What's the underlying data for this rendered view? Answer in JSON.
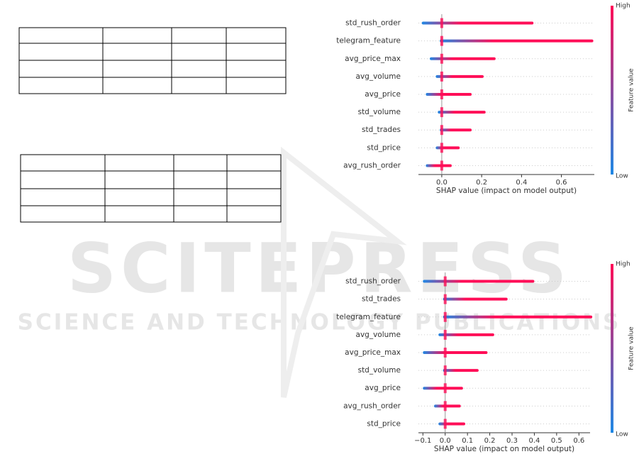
{
  "watermark": {
    "title": "SCITEPRESS",
    "subtitle": "SCIENCE AND TECHNOLOGY PUBLICATIONS"
  },
  "chart_data": [
    {
      "type": "beeswarm",
      "xlabel": "SHAP value (impact on model output)",
      "colorbar_label": "Feature value",
      "colorbar_high": "High",
      "colorbar_low": "Low",
      "colors": [
        "#1e88e5",
        "#ff0d57"
      ],
      "categories": [
        "std_rush_order",
        "telegram_feature",
        "avg_price_max",
        "avg_volume",
        "avg_price",
        "std_volume",
        "std_trades",
        "std_price",
        "avg_rush_order"
      ],
      "ranges": [
        [
          -0.1,
          0.46
        ],
        [
          -0.01,
          0.76
        ],
        [
          -0.06,
          0.27
        ],
        [
          -0.03,
          0.21
        ],
        [
          -0.08,
          0.15
        ],
        [
          -0.02,
          0.22
        ],
        [
          -0.01,
          0.15
        ],
        [
          -0.03,
          0.09
        ],
        [
          -0.08,
          0.05
        ]
      ],
      "xlim": [
        -0.117,
        0.765
      ],
      "xticks": [
        {
          "value": 0,
          "label": "0.0"
        },
        {
          "value": 0.2,
          "label": "0.2"
        },
        {
          "value": 0.4,
          "label": "0.4"
        },
        {
          "value": 0.6,
          "label": "0.6"
        }
      ]
    },
    {
      "type": "beeswarm",
      "xlabel": "SHAP value (impact on model output)",
      "colorbar_label": "Feature value",
      "colorbar_high": "High",
      "colorbar_low": "Low",
      "colors": [
        "#1e88e5",
        "#ff0d57"
      ],
      "categories": [
        "std_rush_order",
        "std_trades",
        "telegram_feature",
        "avg_volume",
        "avg_price_max",
        "std_volume",
        "avg_price",
        "avg_rush_order",
        "std_price"
      ],
      "ranges": [
        [
          -0.1,
          0.4
        ],
        [
          -0.01,
          0.28
        ],
        [
          -0.01,
          0.66
        ],
        [
          -0.03,
          0.22
        ],
        [
          -0.1,
          0.19
        ],
        [
          -0.01,
          0.15
        ],
        [
          -0.1,
          0.08
        ],
        [
          -0.05,
          0.07
        ],
        [
          -0.03,
          0.09
        ]
      ],
      "xlim": [
        -0.12,
        0.65
      ],
      "xticks": [
        {
          "value": -0.1,
          "label": "−0.1"
        },
        {
          "value": 0,
          "label": "0.0"
        },
        {
          "value": 0.1,
          "label": "0.1"
        },
        {
          "value": 0.2,
          "label": "0.2"
        },
        {
          "value": 0.3,
          "label": "0.3"
        },
        {
          "value": 0.4,
          "label": "0.4"
        },
        {
          "value": 0.5,
          "label": "0.5"
        },
        {
          "value": 0.6,
          "label": "0.6"
        }
      ]
    }
  ]
}
